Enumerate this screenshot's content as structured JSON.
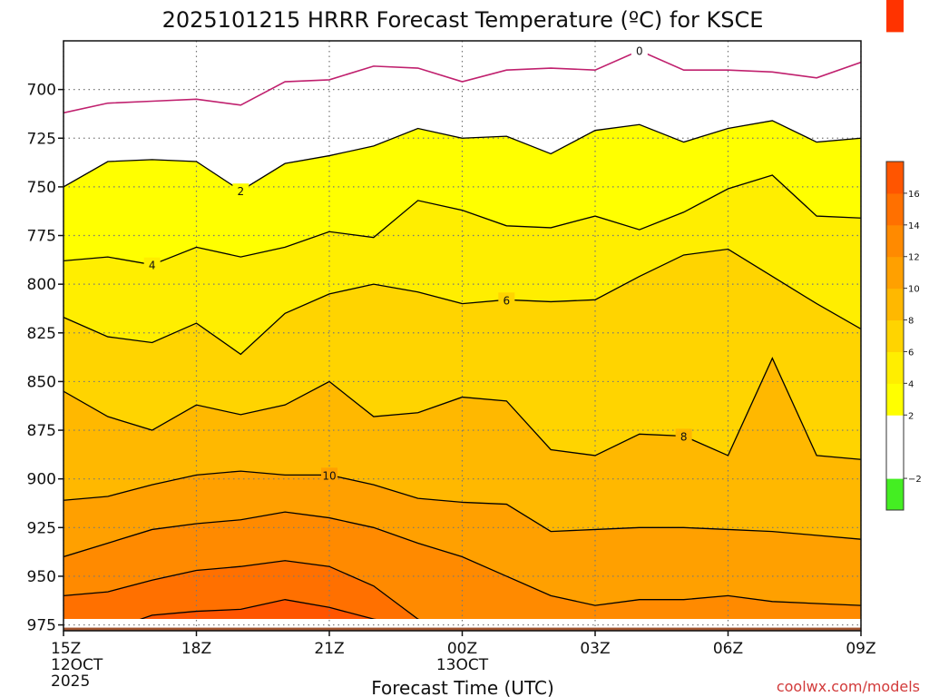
{
  "chart_data": {
    "type": "heatmap",
    "title": "2025101215 HRRR Forecast Temperature (ºC) for KSCE",
    "xlabel": "Forecast Time (UTC)",
    "ylabel": "",
    "credit": "coolwx.com/models",
    "xlim": [
      0,
      18
    ],
    "ylim": [
      978,
      675
    ],
    "x_ticks": [
      {
        "x": 0,
        "label": "15Z",
        "sub1": "12OCT",
        "sub2": "2025"
      },
      {
        "x": 3,
        "label": "18Z",
        "sub1": "",
        "sub2": ""
      },
      {
        "x": 6,
        "label": "21Z",
        "sub1": "",
        "sub2": ""
      },
      {
        "x": 9,
        "label": "00Z",
        "sub1": "13OCT",
        "sub2": ""
      },
      {
        "x": 12,
        "label": "03Z",
        "sub1": "",
        "sub2": ""
      },
      {
        "x": 15,
        "label": "06Z",
        "sub1": "",
        "sub2": ""
      },
      {
        "x": 18,
        "label": "09Z",
        "sub1": "",
        "sub2": ""
      }
    ],
    "y_ticks": [
      700,
      725,
      750,
      775,
      800,
      825,
      850,
      875,
      900,
      925,
      950,
      975
    ],
    "ground_level_hPa": 975,
    "forecast_hours": [
      0,
      1,
      2,
      3,
      4,
      5,
      6,
      7,
      8,
      9,
      10,
      11,
      12,
      13,
      14,
      15,
      16,
      17,
      18
    ],
    "isotherms": [
      {
        "value": 0,
        "color": "#c0206e",
        "label_at_hour": 13,
        "pressure": [
          712,
          707,
          706,
          705,
          708,
          696,
          695,
          688,
          689,
          696,
          690,
          689,
          690,
          680,
          690,
          690,
          691,
          694,
          686
        ]
      },
      {
        "value": 2,
        "color": "#000000",
        "label_at_hour": 4,
        "pressure": [
          750,
          737,
          736,
          737,
          752,
          738,
          734,
          729,
          720,
          725,
          724,
          733,
          721,
          718,
          727,
          720,
          716,
          727,
          725
        ]
      },
      {
        "value": 4,
        "color": "#000000",
        "label_at_hour": 2,
        "pressure": [
          788,
          786,
          790,
          781,
          786,
          781,
          773,
          776,
          757,
          762,
          770,
          771,
          765,
          772,
          763,
          751,
          744,
          765,
          766
        ]
      },
      {
        "value": 6,
        "color": "#000000",
        "label_at_hour": 10,
        "pressure": [
          817,
          827,
          830,
          820,
          836,
          815,
          805,
          800,
          804,
          810,
          808,
          809,
          808,
          796,
          785,
          782,
          796,
          810,
          823
        ]
      },
      {
        "value": 8,
        "color": "#000000",
        "label_at_hour": 14,
        "pressure": [
          855,
          868,
          875,
          862,
          867,
          862,
          850,
          868,
          866,
          858,
          860,
          885,
          888,
          877,
          878,
          888,
          838,
          888,
          890
        ]
      },
      {
        "value": 10,
        "color": "#000000",
        "label_at_hour": 6,
        "pressure": [
          911,
          909,
          903,
          898,
          896,
          898,
          898,
          903,
          910,
          912,
          913,
          927,
          926,
          925,
          925,
          926,
          927,
          929,
          931
        ]
      },
      {
        "value": 12,
        "color": "#000000",
        "label_at_hour": null,
        "pressure": [
          940,
          933,
          926,
          923,
          921,
          917,
          920,
          925,
          933,
          940,
          950,
          960,
          965,
          962,
          962,
          960,
          963,
          964,
          965
        ]
      },
      {
        "value": 14,
        "color": "#000000",
        "label_at_hour": null,
        "pressure": [
          960,
          958,
          952,
          947,
          945,
          942,
          945,
          955,
          972,
          980,
          978,
          980,
          980,
          978,
          978,
          978,
          978,
          978,
          978
        ]
      },
      {
        "value": 16,
        "color": "#000000",
        "label_at_hour": null,
        "pressure": [
          978,
          978,
          970,
          968,
          967,
          962,
          966,
          972,
          976,
          978,
          978,
          978,
          978,
          978,
          978,
          978,
          978,
          978,
          978
        ]
      }
    ],
    "colorbar": {
      "levels": [
        -4,
        -2,
        0,
        2,
        4,
        6,
        8,
        10,
        12,
        14,
        16,
        18
      ],
      "labels": [
        -2,
        2,
        4,
        6,
        8,
        10,
        12,
        14,
        16
      ],
      "colors": [
        "#44ee22",
        "#ffffff",
        "#ffffff",
        "#ffff00",
        "#ffee00",
        "#ffd400",
        "#ffb800",
        "#ffa000",
        "#ff8a00",
        "#ff7000",
        "#ff5500",
        "#ff3300"
      ]
    }
  }
}
